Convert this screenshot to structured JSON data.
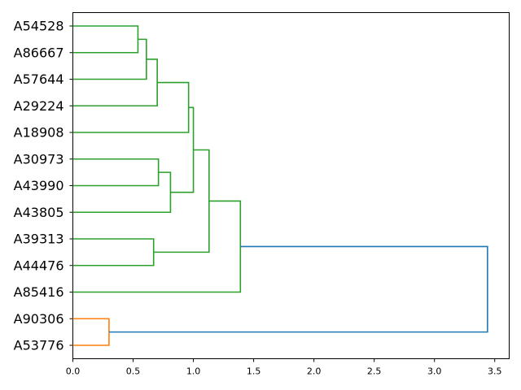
{
  "chart_data": {
    "type": "dendrogram",
    "orientation": "left",
    "title": "",
    "xlabel": "",
    "ylabel": "",
    "xlim": [
      0,
      3.62
    ],
    "x_ticks": [
      0.0,
      0.5,
      1.0,
      1.5,
      2.0,
      2.5,
      3.0,
      3.5
    ],
    "x_tick_labels": [
      "0.0",
      "0.5",
      "1.0",
      "1.5",
      "2.0",
      "2.5",
      "3.0",
      "3.5"
    ],
    "grid": false,
    "leaves": [
      "A54528",
      "A86667",
      "A57644",
      "A29224",
      "A18908",
      "A30973",
      "A43990",
      "A43805",
      "A39313",
      "A44476",
      "A85416",
      "A90306",
      "A53776"
    ],
    "colors": {
      "cluster_1": "#2ca02c",
      "cluster_2": "#ff7f0e",
      "root": "#1f77b4"
    },
    "merges": [
      {
        "id": "m1",
        "children": [
          "A54528",
          "A86667"
        ],
        "height": 0.54,
        "color": "cluster_1"
      },
      {
        "id": "m2",
        "children": [
          "m1",
          "A57644"
        ],
        "height": 0.61,
        "color": "cluster_1"
      },
      {
        "id": "m3",
        "children": [
          "m2",
          "A29224"
        ],
        "height": 0.7,
        "color": "cluster_1"
      },
      {
        "id": "m4",
        "children": [
          "m3",
          "A18908"
        ],
        "height": 0.96,
        "color": "cluster_1"
      },
      {
        "id": "m5",
        "children": [
          "A30973",
          "A43990"
        ],
        "height": 0.71,
        "color": "cluster_1"
      },
      {
        "id": "m6",
        "children": [
          "m5",
          "A43805"
        ],
        "height": 0.81,
        "color": "cluster_1"
      },
      {
        "id": "m7",
        "children": [
          "m4",
          "m6"
        ],
        "height": 1.0,
        "color": "cluster_1"
      },
      {
        "id": "m8",
        "children": [
          "A39313",
          "A44476"
        ],
        "height": 0.67,
        "color": "cluster_1"
      },
      {
        "id": "m9",
        "children": [
          "m7",
          "m8"
        ],
        "height": 1.13,
        "color": "cluster_1"
      },
      {
        "id": "m10",
        "children": [
          "m9",
          "A85416"
        ],
        "height": 1.39,
        "color": "cluster_1"
      },
      {
        "id": "m11",
        "children": [
          "A90306",
          "A53776"
        ],
        "height": 0.3,
        "color": "cluster_2"
      },
      {
        "id": "m12",
        "children": [
          "m10",
          "m11"
        ],
        "height": 3.44,
        "color": "root"
      }
    ]
  }
}
